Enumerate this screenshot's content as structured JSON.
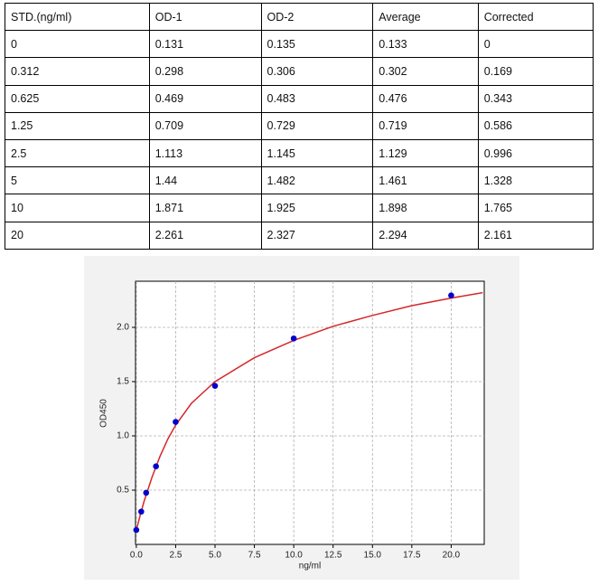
{
  "table": {
    "header": [
      "STD.(ng/ml)",
      "OD-1",
      "OD-2",
      "Average",
      "Corrected"
    ],
    "rows": [
      [
        "0",
        "0.131",
        "0.135",
        "0.133",
        "0"
      ],
      [
        "0.312",
        "0.298",
        "0.306",
        "0.302",
        "0.169"
      ],
      [
        "0.625",
        "0.469",
        "0.483",
        "0.476",
        "0.343"
      ],
      [
        "1.25",
        "0.709",
        "0.729",
        "0.719",
        "0.586"
      ],
      [
        "2.5",
        "1.113",
        "1.145",
        "1.129",
        "0.996"
      ],
      [
        "5",
        "1.44",
        "1.482",
        "1.461",
        "1.328"
      ],
      [
        "10",
        "1.871",
        "1.925",
        "1.898",
        "1.765"
      ],
      [
        "20",
        "2.261",
        "2.327",
        "2.294",
        "2.161"
      ]
    ]
  },
  "chart_data": {
    "type": "scatter",
    "x_label": "ng/ml",
    "y_label": "OD450",
    "points": {
      "color": "#0000cc",
      "x": [
        0,
        0.312,
        0.625,
        1.25,
        2.5,
        5,
        10,
        20
      ],
      "values": [
        0.133,
        0.302,
        0.476,
        0.719,
        1.129,
        1.461,
        1.898,
        2.294
      ]
    },
    "curve": {
      "color": "#d62728",
      "x": [
        0,
        0.25,
        0.5,
        1,
        1.5,
        2,
        2.5,
        3.5,
        5,
        7.5,
        10,
        12.5,
        15,
        17.5,
        20,
        22
      ],
      "values": [
        0.13,
        0.27,
        0.4,
        0.62,
        0.81,
        0.97,
        1.1,
        1.3,
        1.5,
        1.72,
        1.88,
        2.01,
        2.11,
        2.2,
        2.27,
        2.32
      ]
    },
    "xlim": [
      -0.05,
      22.1
    ],
    "ylim": [
      0,
      2.425
    ],
    "xticks": [
      {
        "value": 0,
        "label": "0.0"
      },
      {
        "value": 2.5,
        "label": "2.5"
      },
      {
        "value": 5,
        "label": "5.0"
      },
      {
        "value": 7.5,
        "label": "7.5"
      },
      {
        "value": 10,
        "label": "10.0"
      },
      {
        "value": 12.5,
        "label": "12.5"
      },
      {
        "value": 15,
        "label": "15.0"
      },
      {
        "value": 17.5,
        "label": "17.5"
      },
      {
        "value": 20,
        "label": "20.0"
      }
    ],
    "yticks": [
      0.5,
      {
        "value": 1,
        "label": "1.0"
      },
      1.5,
      {
        "value": 2,
        "label": "2.0"
      }
    ],
    "grid": true
  }
}
